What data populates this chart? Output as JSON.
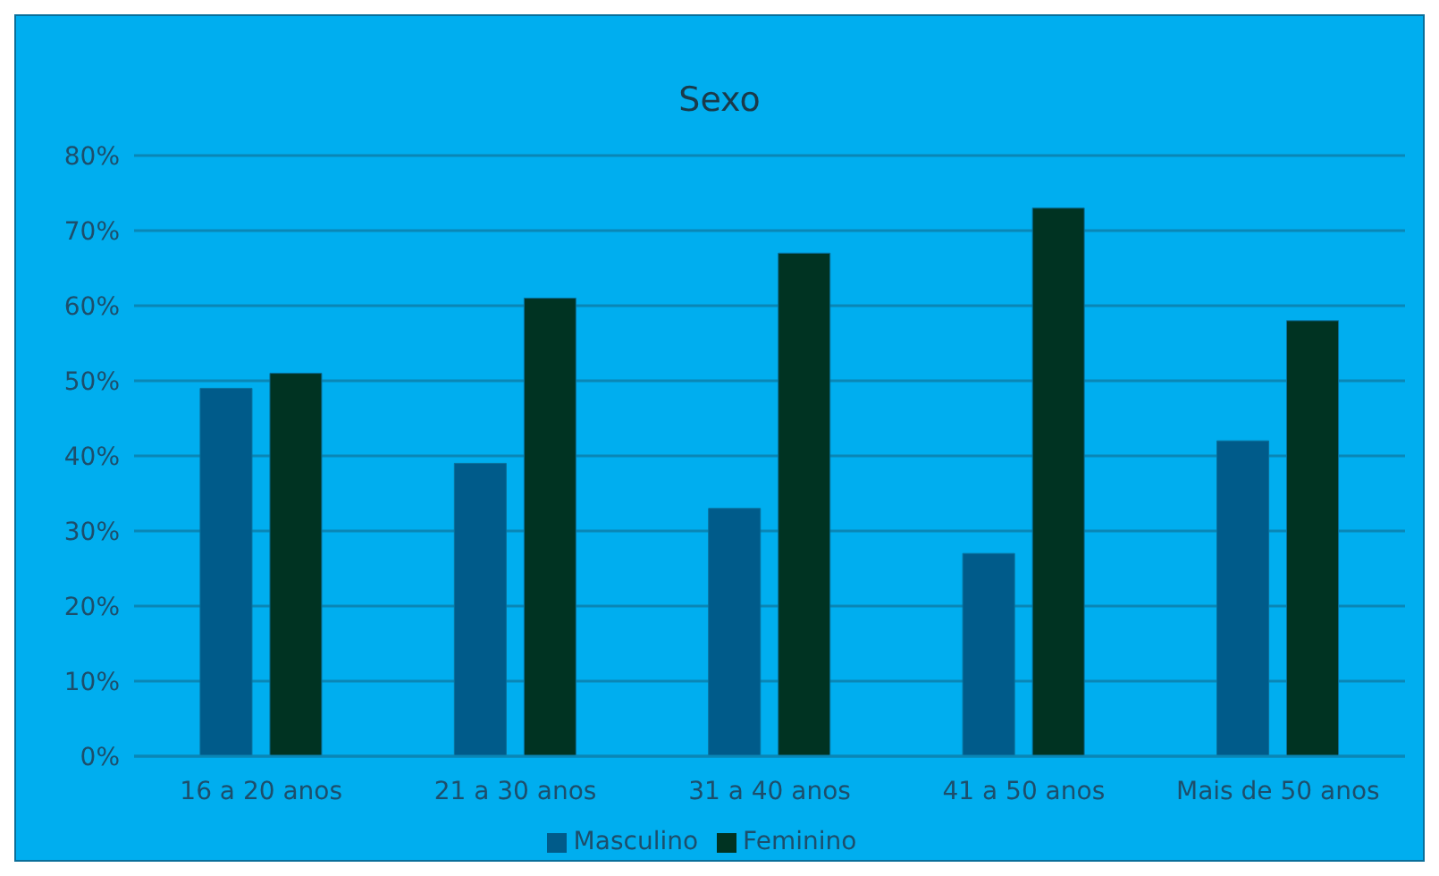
{
  "chart_data": {
    "type": "bar",
    "title": "Sexo",
    "categories": [
      "16 a 20 anos",
      "21 a 30 anos",
      "31 a 40 anos",
      "41 a 50 anos",
      "Mais de 50 anos"
    ],
    "series": [
      {
        "name": "Masculino",
        "color": "#005b8a",
        "values": [
          49,
          39,
          33,
          27,
          42
        ]
      },
      {
        "name": "Feminino",
        "color": "#003322",
        "values": [
          51,
          61,
          67,
          73,
          58
        ]
      }
    ],
    "ylim": [
      0,
      80
    ],
    "yticks": [
      {
        "value": 0,
        "label": "0%"
      },
      {
        "value": 10,
        "label": "10%"
      },
      {
        "value": 20,
        "label": "20%"
      },
      {
        "value": 30,
        "label": "30%"
      },
      {
        "value": 40,
        "label": "40%"
      },
      {
        "value": 50,
        "label": "50%"
      },
      {
        "value": 60,
        "label": "60%"
      },
      {
        "value": 70,
        "label": "70%"
      },
      {
        "value": 80,
        "label": "80%"
      }
    ],
    "grid": "y",
    "legend": "bottom"
  }
}
